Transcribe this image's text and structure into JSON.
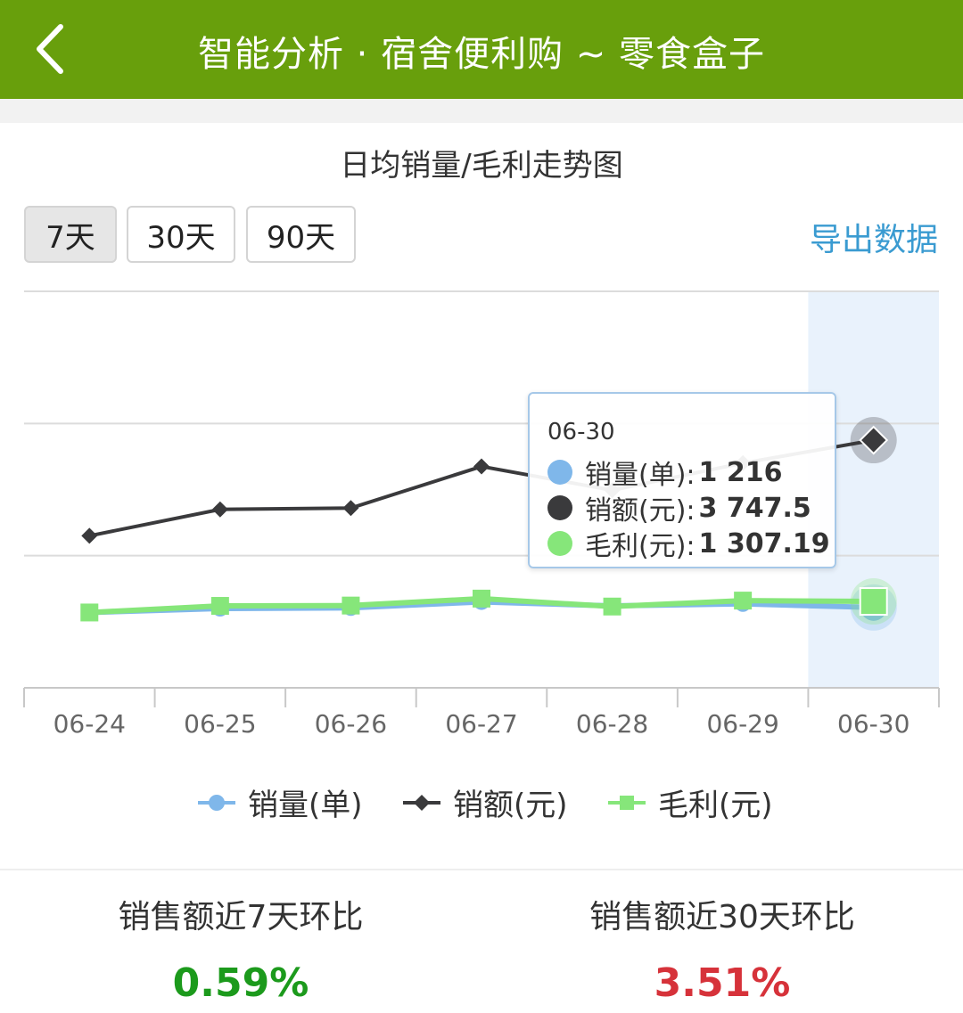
{
  "header": {
    "title": "智能分析 · 宿舍便利购 ~ 零食盒子"
  },
  "chart_title": "日均销量/毛利走势图",
  "range_buttons": [
    "7天",
    "30天",
    "90天"
  ],
  "active_range": "7天",
  "export_label": "导出数据",
  "colors": {
    "header": "#689f0c",
    "sales_qty": "#7fb7ea",
    "sales_amt": "#3a3a3c",
    "profit": "#86e67a",
    "up": "#1c9a1c",
    "down": "#d6323a",
    "link": "#3a9bd1"
  },
  "chart_data": {
    "type": "line",
    "categories": [
      "06-24",
      "06-25",
      "06-26",
      "06-27",
      "06-28",
      "06-29",
      "06-30"
    ],
    "ylim": [
      0,
      6000
    ],
    "grid": true,
    "legend_position": "bottom",
    "series": [
      {
        "name": "销量(单)",
        "marker": "circle",
        "values": [
          1140,
          1200,
          1210,
          1300,
          1240,
          1270,
          1216
        ]
      },
      {
        "name": "销额(元)",
        "marker": "diamond",
        "values": [
          2300,
          2700,
          2720,
          3350,
          2990,
          3400,
          3747.5
        ]
      },
      {
        "name": "毛利(元)",
        "marker": "square",
        "values": [
          1140,
          1240,
          1245,
          1350,
          1230,
          1320,
          1307.19
        ]
      }
    ],
    "highlight_category": "06-30",
    "tooltip": {
      "date": "06-30",
      "rows": [
        {
          "label": "销量(单):",
          "value": "1 216"
        },
        {
          "label": "销额(元):",
          "value": "3 747.5"
        },
        {
          "label": "毛利(元):",
          "value": "1 307.19"
        }
      ]
    }
  },
  "stats": [
    {
      "label": "销售额近7天环比",
      "value": "0.59%",
      "trend": "up"
    },
    {
      "label": "销售额近30天环比",
      "value": "3.51%",
      "trend": "down"
    }
  ]
}
